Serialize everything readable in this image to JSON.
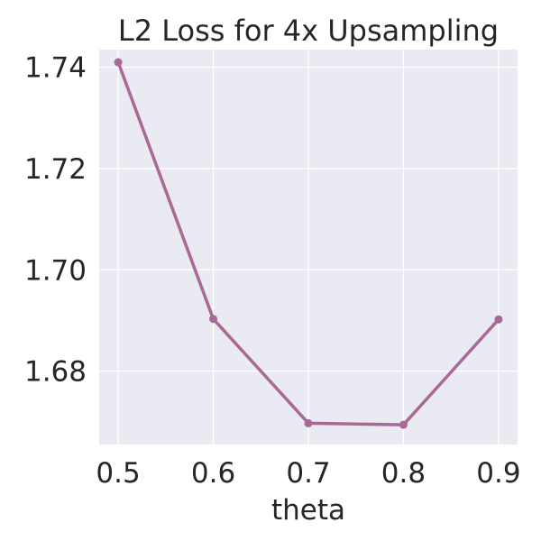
{
  "chart_data": {
    "type": "line",
    "title": "L2 Loss for 4x Upsampling",
    "xlabel": "theta",
    "ylabel": "",
    "x": [
      0.5,
      0.6,
      0.7,
      0.8,
      0.9
    ],
    "x_tick_labels": [
      "0.5",
      "0.6",
      "0.7",
      "0.8",
      "0.9"
    ],
    "y_ticks": [
      1.68,
      1.7,
      1.72,
      1.74
    ],
    "y_tick_labels": [
      "1.68",
      "1.70",
      "1.72",
      "1.74"
    ],
    "xlim": [
      0.48,
      0.92
    ],
    "ylim": [
      1.6655,
      1.7435
    ],
    "grid": true,
    "series": [
      {
        "values": [
          1.741,
          1.6903,
          1.6697,
          1.6694,
          1.6902
        ],
        "color": "#a86a94",
        "marker": "circle"
      }
    ],
    "colors": {
      "plot_background": "#eaeaf2",
      "grid": "#ffffff",
      "text": "#262626"
    }
  }
}
